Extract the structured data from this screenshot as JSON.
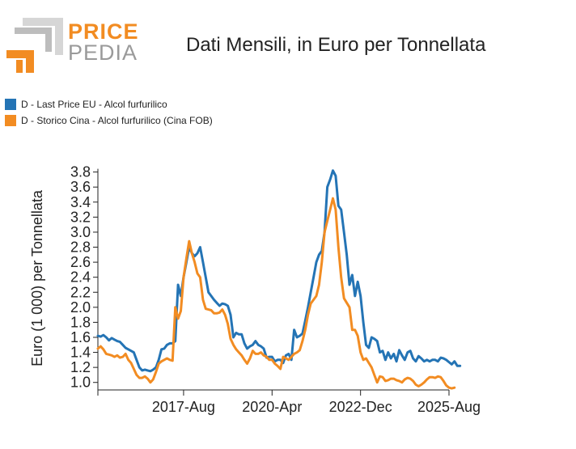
{
  "brand": {
    "line1": "PRICE",
    "line2": "PEDIA",
    "orange": "#f28c22",
    "grey": "#9a9a9a"
  },
  "chart_data": {
    "type": "line",
    "title": "Dati Mensili, in Euro per Tonnellata",
    "ylabel": "Euro (1 000) per Tonnellata",
    "xlabel": "",
    "ylim": [
      0.9,
      3.85
    ],
    "yticks": [
      1.0,
      1.2,
      1.4,
      1.6,
      1.8,
      2.0,
      2.2,
      2.4,
      2.6,
      2.8,
      3.0,
      3.2,
      3.4,
      3.6,
      3.8
    ],
    "xticks": [
      {
        "label": "2017-Aug",
        "t": 2017.583
      },
      {
        "label": "2020-Apr",
        "t": 2020.25
      },
      {
        "label": "2022-Dec",
        "t": 2022.917
      },
      {
        "label": "2025-Aug",
        "t": 2025.583
      }
    ],
    "xrange": [
      2015.0,
      2025.583
    ],
    "grid": false,
    "legend_position": "top-left",
    "series": [
      {
        "name": "D - Last Price EU - Alcol furfurilico",
        "color": "#2474b5",
        "start": "2015-Jan",
        "values": [
          1.62,
          1.61,
          1.63,
          1.6,
          1.56,
          1.59,
          1.57,
          1.55,
          1.54,
          1.5,
          1.46,
          1.44,
          1.42,
          1.4,
          1.3,
          1.2,
          1.16,
          1.17,
          1.16,
          1.15,
          1.17,
          1.2,
          1.3,
          1.44,
          1.45,
          1.5,
          1.52,
          1.52,
          1.55,
          2.3,
          2.15,
          2.4,
          2.6,
          2.8,
          2.72,
          2.68,
          2.72,
          2.8,
          2.6,
          2.4,
          2.2,
          2.15,
          2.1,
          2.06,
          2.02,
          2.05,
          2.04,
          2.02,
          1.9,
          1.6,
          1.66,
          1.64,
          1.64,
          1.52,
          1.45,
          1.48,
          1.5,
          1.55,
          1.5,
          1.48,
          1.45,
          1.33,
          1.34,
          1.34,
          1.28,
          1.3,
          1.3,
          1.26,
          1.36,
          1.38,
          1.3,
          1.7,
          1.6,
          1.62,
          1.65,
          1.82,
          2.0,
          2.2,
          2.4,
          2.6,
          2.7,
          2.75,
          3.0,
          3.6,
          3.7,
          3.82,
          3.75,
          3.35,
          3.3,
          3.0,
          2.7,
          2.3,
          2.43,
          2.15,
          2.34,
          2.15,
          1.8,
          1.5,
          1.46,
          1.6,
          1.58,
          1.55,
          1.4,
          1.42,
          1.3,
          1.4,
          1.32,
          1.38,
          1.28,
          1.43,
          1.36,
          1.3,
          1.4,
          1.42,
          1.32,
          1.28,
          1.35,
          1.32,
          1.28,
          1.3,
          1.28,
          1.3,
          1.3,
          1.28,
          1.33,
          1.32,
          1.3,
          1.27,
          1.24,
          1.28,
          1.22,
          1.22
        ]
      },
      {
        "name": "D - Storico Cina - Alcol furfurilico (Cina FOB)",
        "color": "#f28c22",
        "start": "2015-Jan",
        "values": [
          1.45,
          1.48,
          1.44,
          1.38,
          1.37,
          1.36,
          1.34,
          1.36,
          1.33,
          1.34,
          1.38,
          1.3,
          1.26,
          1.18,
          1.1,
          1.06,
          1.06,
          1.08,
          1.05,
          1.0,
          1.04,
          1.14,
          1.25,
          1.28,
          1.3,
          1.32,
          1.3,
          1.29,
          2.0,
          1.85,
          1.95,
          2.4,
          2.65,
          2.88,
          2.72,
          2.6,
          2.45,
          2.4,
          2.1,
          1.98,
          1.97,
          1.96,
          1.92,
          1.92,
          1.93,
          1.97,
          1.9,
          1.78,
          1.58,
          1.5,
          1.44,
          1.4,
          1.36,
          1.3,
          1.25,
          1.32,
          1.42,
          1.38,
          1.38,
          1.4,
          1.36,
          1.34,
          1.3,
          1.3,
          1.25,
          1.22,
          1.18,
          1.34,
          1.32,
          1.3,
          1.34,
          1.38,
          1.4,
          1.43,
          1.55,
          1.7,
          1.9,
          2.05,
          2.1,
          2.15,
          2.3,
          2.6,
          3.0,
          3.15,
          3.3,
          3.45,
          3.3,
          2.8,
          2.4,
          2.12,
          2.06,
          2.0,
          1.7,
          1.7,
          1.62,
          1.4,
          1.3,
          1.32,
          1.26,
          1.2,
          1.1,
          1.0,
          1.08,
          1.07,
          1.02,
          1.03,
          1.05,
          1.05,
          1.03,
          1.02,
          1.0,
          1.04,
          1.06,
          1.05,
          1.02,
          0.97,
          0.95,
          0.97,
          1.0,
          1.04,
          1.07,
          1.07,
          1.06,
          1.08,
          1.07,
          1.02,
          0.96,
          0.93,
          0.92,
          0.93
        ]
      }
    ]
  }
}
